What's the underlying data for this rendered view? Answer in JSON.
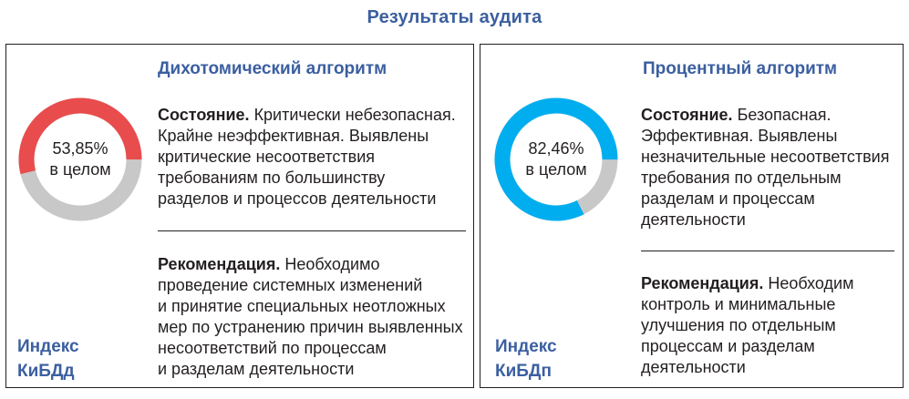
{
  "title": "Результаты аудита",
  "colors": {
    "heading_blue": "#3b5fa0",
    "track_gray": "#c8c8c8",
    "red": "#e84c4d",
    "cyan": "#00aeef"
  },
  "panels": [
    {
      "title": "Дихотомический алгоритм",
      "donut": {
        "percent_label": "53,85%",
        "caption": "в целом",
        "value": 53.85,
        "fill_color": "#e84c4d"
      },
      "status_label": "Состояние.",
      "status_text": " Критически небезопасная.\nКрайне неэффективная. Выявлены\nкритические несоответствия\nтребованиям по большинству\nразделов и процессов деятельности",
      "recommendation_label": "Рекомендация.",
      "recommendation_text": " Необходимо\nпроведение системных изменений\nи принятие специальных неотложных\nмер по устранению причин выявленных\nнесоответствий по процессам\nи разделам деятельности",
      "index_label": "Индекс\nКиБДд"
    },
    {
      "title": "Процентный алгоритм",
      "donut": {
        "percent_label": "82,46%",
        "caption": "в целом",
        "value": 82.46,
        "fill_color": "#00aeef"
      },
      "status_label": "Состояние.",
      "status_text": " Безопасная.\nЭффективная. Выявлены\nнезначительные несоответствия\nтребования по отдельным\nразделам и процессам\nдеятельности",
      "recommendation_label": "Рекомендация.",
      "recommendation_text": " Необходим\nконтроль и минимальные\nулучшения по отдельным\nпроцессам и разделам\nдеятельности",
      "index_label": "Индекс\nКиБДп"
    }
  ]
}
